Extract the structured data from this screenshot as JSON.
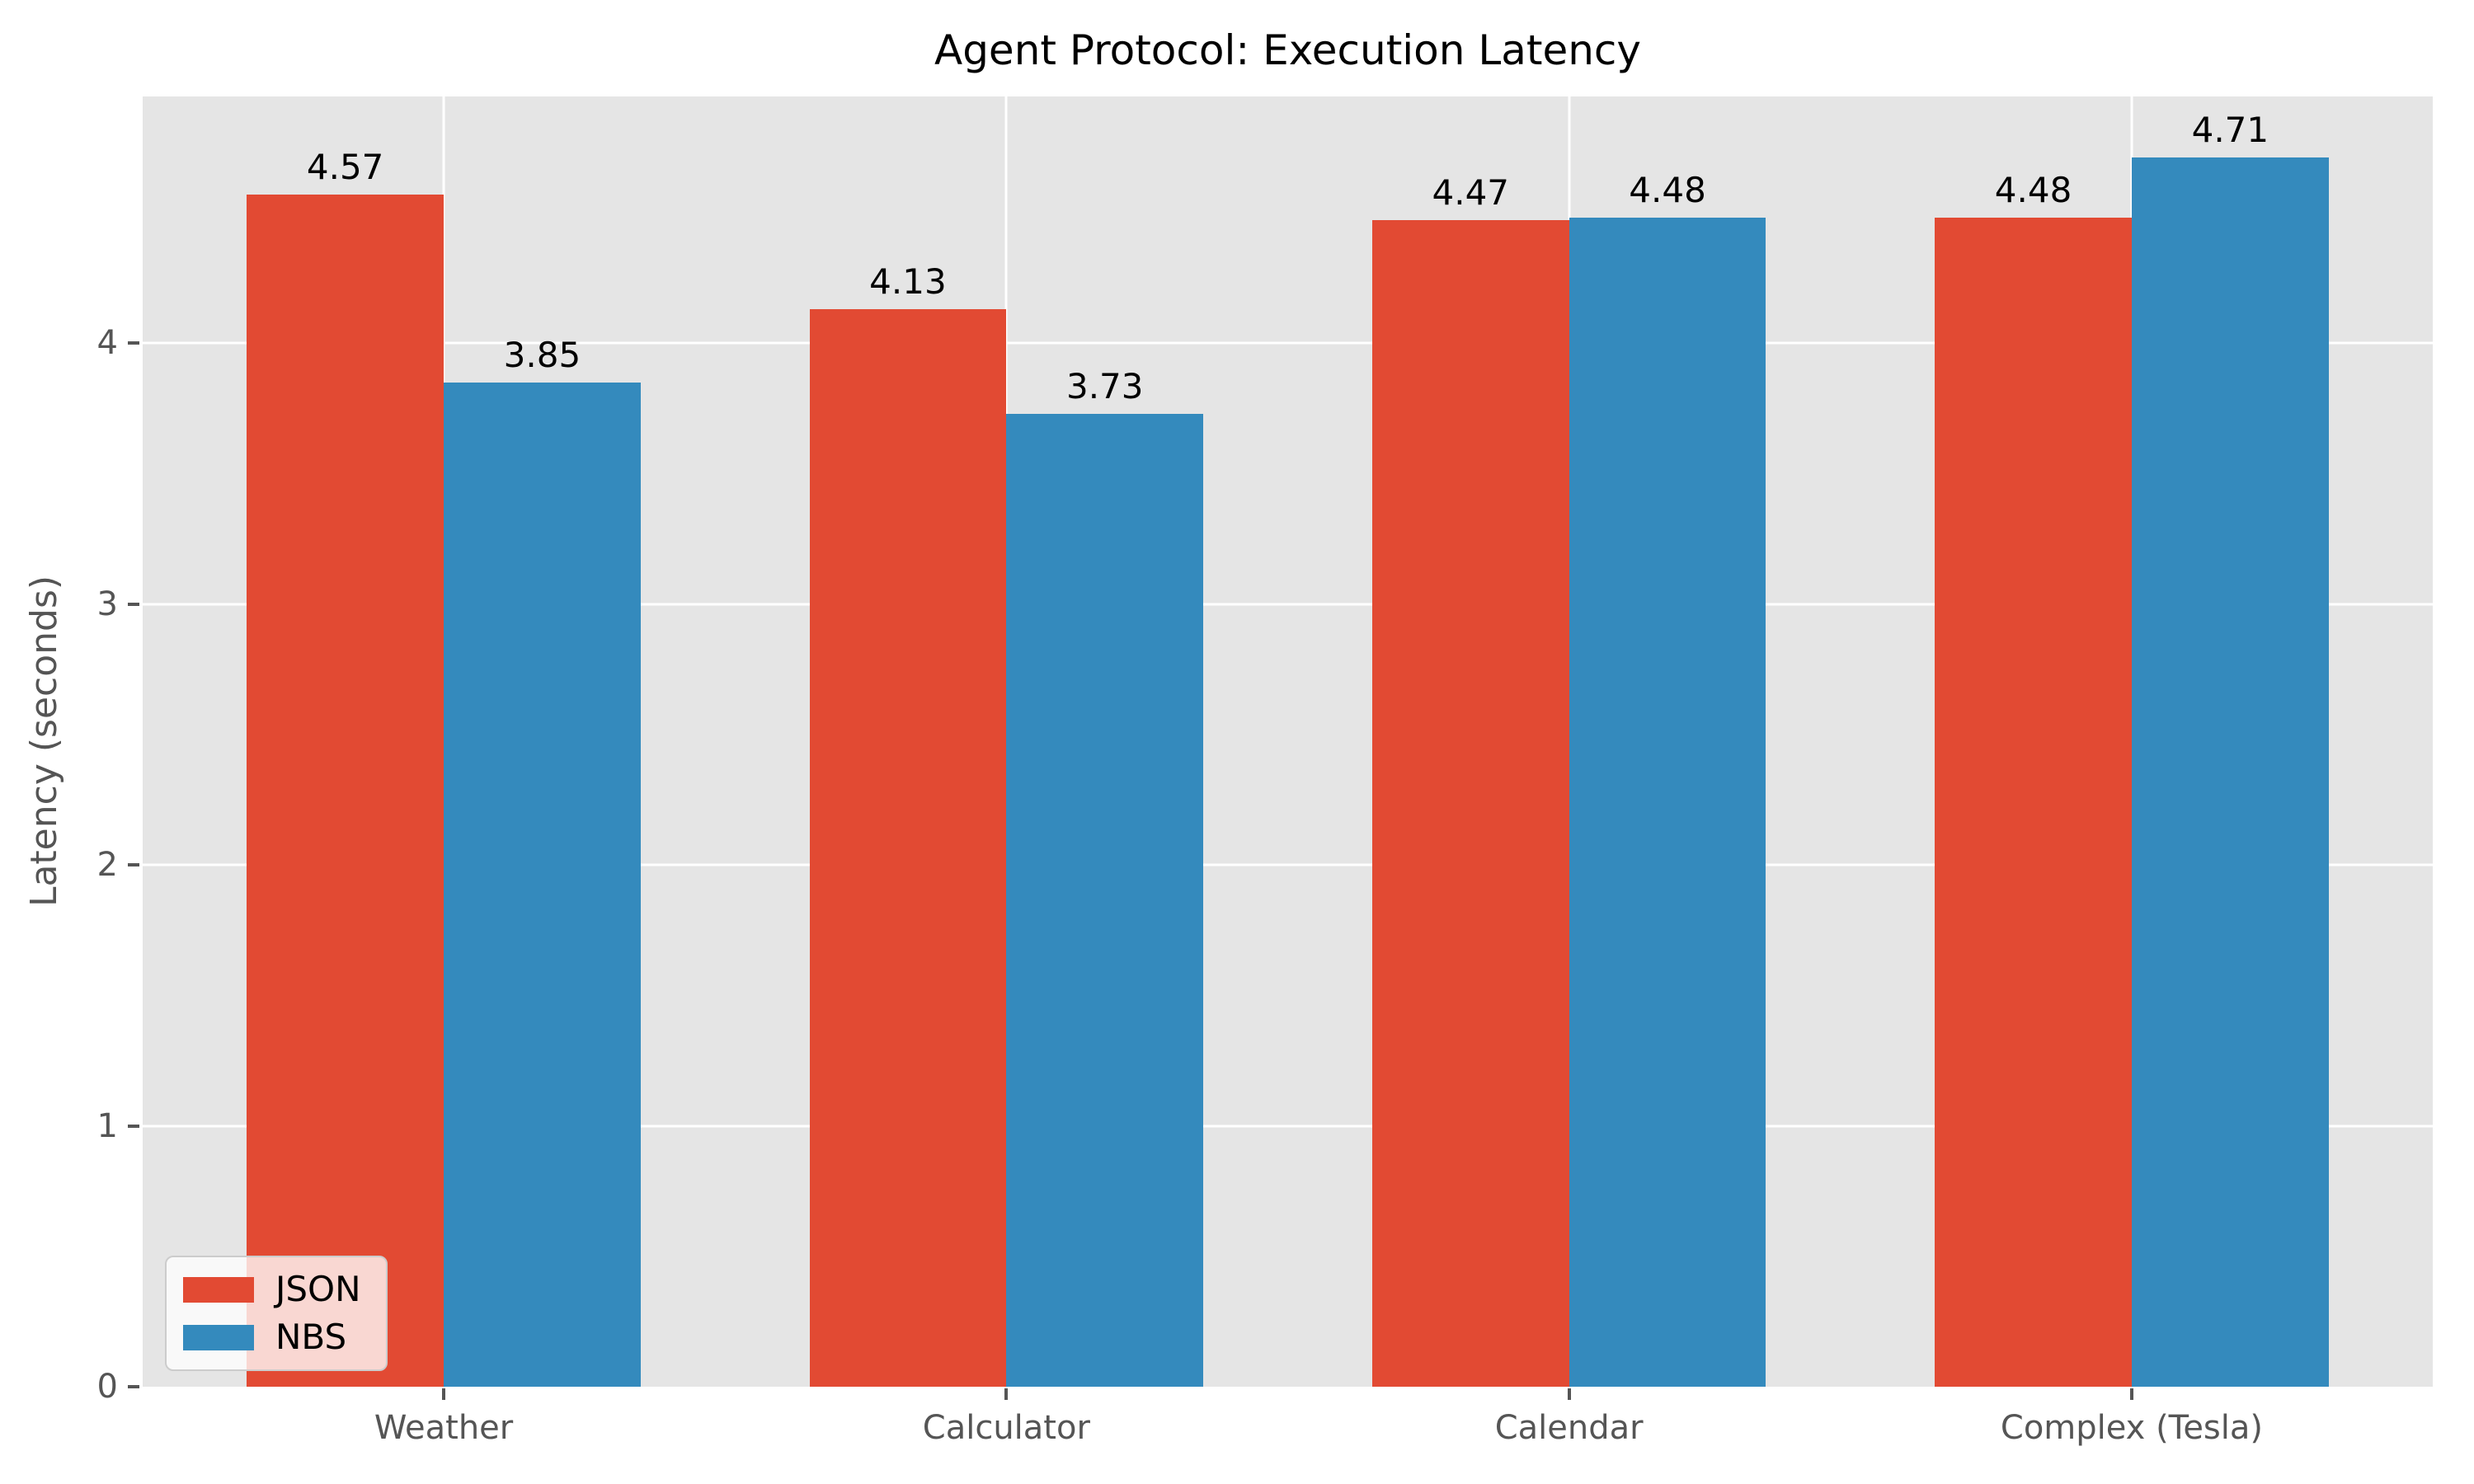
{
  "chart_data": {
    "type": "bar",
    "title": "Agent Protocol: Execution Latency",
    "xlabel": "",
    "ylabel": "Latency (seconds)",
    "categories": [
      "Weather",
      "Calculator",
      "Calendar",
      "Complex (Tesla)"
    ],
    "series": [
      {
        "name": "JSON",
        "color": "#E24A33",
        "values": [
          4.57,
          4.13,
          4.47,
          4.48
        ],
        "labels": [
          "4.57",
          "4.13",
          "4.47",
          "4.48"
        ]
      },
      {
        "name": "NBS",
        "color": "#348ABD",
        "values": [
          3.85,
          3.73,
          4.48,
          4.71
        ],
        "labels": [
          "3.85",
          "3.73",
          "4.48",
          "4.71"
        ]
      }
    ],
    "yticks": [
      0,
      1,
      2,
      3,
      4
    ],
    "ytick_labels": [
      "0",
      "1",
      "2",
      "3",
      "4"
    ],
    "ylim": [
      0,
      4.945
    ],
    "xlim": [
      -0.535,
      3.535
    ],
    "bar_width": 0.35,
    "grid": true,
    "legend_position": "lower left",
    "colors": {
      "plot_background": "#E5E5E5",
      "gridline": "#FFFFFF",
      "tick_label": "#555555",
      "axis_label": "#555555",
      "value_label": "#000000",
      "title": "#000000",
      "legend_border": "#CCCCCC",
      "legend_text": "#000000"
    }
  }
}
